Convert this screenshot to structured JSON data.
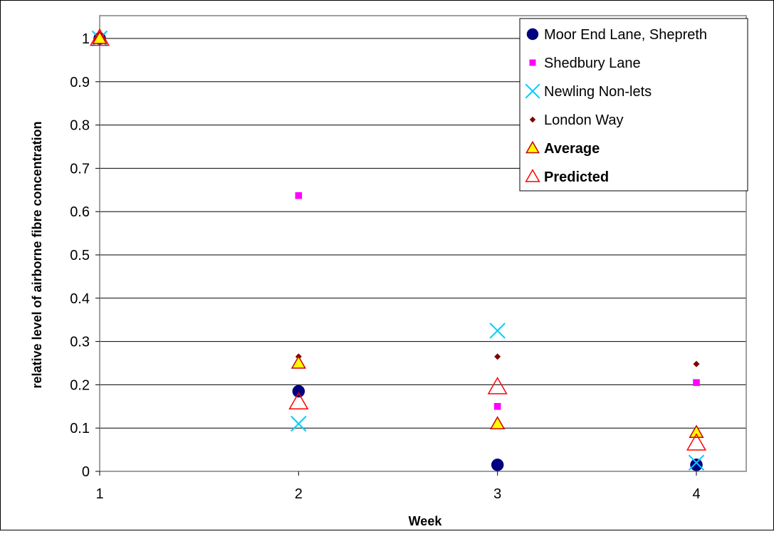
{
  "chart_data": {
    "type": "scatter",
    "xlabel": "Week",
    "ylabel": "relative level of airborne fibre concentration",
    "xlim": [
      1,
      4
    ],
    "ylim": [
      0,
      1.05
    ],
    "xticks": [
      "1",
      "2",
      "3",
      "4"
    ],
    "yticks": [
      "0",
      "0.1",
      "0.2",
      "0.3",
      "0.4",
      "0.5",
      "0.6",
      "0.7",
      "0.8",
      "0.9",
      "1"
    ],
    "grid": "horizontal",
    "legend_position": "top-right",
    "series": [
      {
        "name": "Moor End Lane, Shepreth",
        "marker": "circle",
        "color": "#000080",
        "bold": false,
        "points": [
          [
            1,
            1.0
          ],
          [
            2,
            0.185
          ],
          [
            3,
            0.015
          ],
          [
            4,
            0.015
          ]
        ]
      },
      {
        "name": "Shedbury Lane",
        "marker": "square",
        "color": "#FF00FF",
        "bold": false,
        "points": [
          [
            1,
            1.0
          ],
          [
            2,
            0.637
          ],
          [
            3,
            0.15
          ],
          [
            4,
            0.205
          ]
        ]
      },
      {
        "name": "Newling Non-lets",
        "marker": "x",
        "color": "#00CCFF",
        "bold": false,
        "points": [
          [
            1,
            1.0
          ],
          [
            2,
            0.11
          ],
          [
            3,
            0.325
          ],
          [
            4,
            0.02
          ]
        ]
      },
      {
        "name": "London Way",
        "marker": "diamond",
        "color": "#800000",
        "bold": false,
        "points": [
          [
            1,
            1.0
          ],
          [
            2,
            0.265
          ],
          [
            3,
            0.265
          ],
          [
            4,
            0.248
          ]
        ]
      },
      {
        "name": "Average",
        "marker": "triangle-filled",
        "color": "#FFFF00",
        "stroke": "#CC0000",
        "bold": true,
        "points": [
          [
            1,
            1.0
          ],
          [
            2,
            0.25
          ],
          [
            3,
            0.11
          ],
          [
            4,
            0.09
          ]
        ]
      },
      {
        "name": "Predicted",
        "marker": "triangle-open",
        "color": "#FF0000",
        "bold": true,
        "points": [
          [
            1,
            1.0
          ],
          [
            2,
            0.16
          ],
          [
            3,
            0.195
          ],
          [
            4,
            0.065
          ]
        ]
      }
    ]
  }
}
